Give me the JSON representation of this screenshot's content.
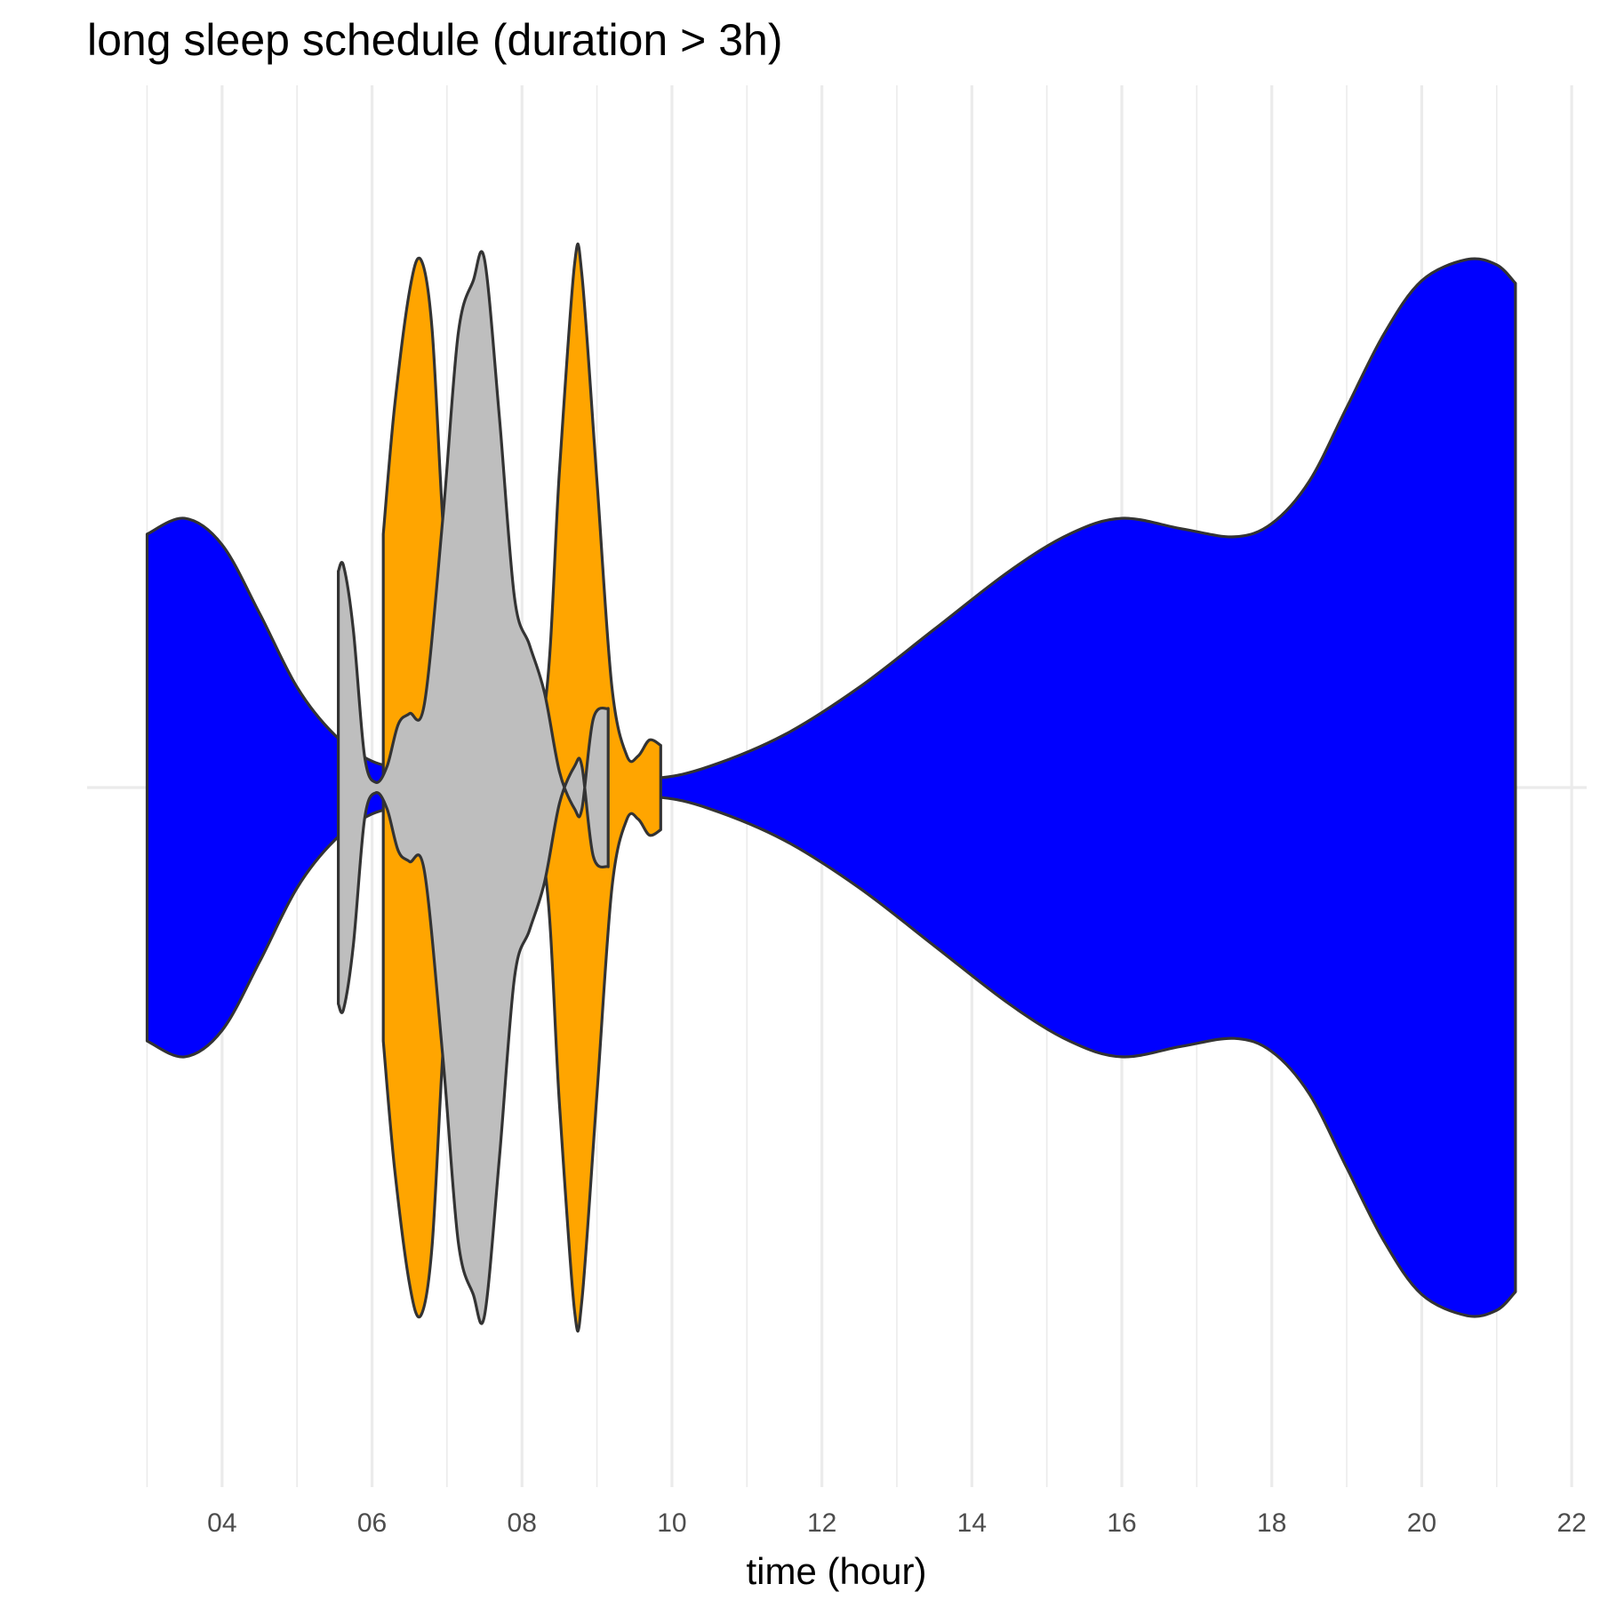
{
  "chart_data": {
    "type": "violin",
    "title": "long sleep schedule (duration > 3h)",
    "xlabel": "time (hour)",
    "ylabel": "",
    "xlim": [
      2.2,
      22.2
    ],
    "x_ticks": [
      "04",
      "06",
      "08",
      "10",
      "12",
      "14",
      "16",
      "18",
      "20",
      "22"
    ],
    "x_tick_values": [
      4,
      6,
      8,
      10,
      12,
      14,
      16,
      18,
      20,
      22
    ],
    "x_minor": [
      3,
      5,
      7,
      9,
      11,
      13,
      15,
      17,
      19,
      21
    ],
    "grid": true,
    "legend": "none",
    "series": [
      {
        "color": "#0000ff",
        "range": [
          3.0,
          21.25
        ],
        "density": [
          [
            3.0,
            0.48
          ],
          [
            3.5,
            0.51
          ],
          [
            4.0,
            0.46
          ],
          [
            4.5,
            0.33
          ],
          [
            5.0,
            0.19
          ],
          [
            5.5,
            0.1
          ],
          [
            6.0,
            0.05
          ],
          [
            6.5,
            0.035
          ],
          [
            7.0,
            0.03
          ],
          [
            8.0,
            0.025
          ],
          [
            9.0,
            0.022
          ],
          [
            9.8,
            0.018
          ],
          [
            10.5,
            0.04
          ],
          [
            11.5,
            0.1
          ],
          [
            12.5,
            0.19
          ],
          [
            13.5,
            0.3
          ],
          [
            14.5,
            0.41
          ],
          [
            15.3,
            0.48
          ],
          [
            16.0,
            0.51
          ],
          [
            16.8,
            0.49
          ],
          [
            17.5,
            0.475
          ],
          [
            18.0,
            0.5
          ],
          [
            18.5,
            0.58
          ],
          [
            19.0,
            0.72
          ],
          [
            19.5,
            0.86
          ],
          [
            20.0,
            0.96
          ],
          [
            20.6,
            1.0
          ],
          [
            21.0,
            0.99
          ],
          [
            21.25,
            0.955
          ]
        ]
      },
      {
        "color": "#ffa500",
        "range": [
          6.15,
          9.85
        ],
        "density": [
          [
            6.15,
            0.48
          ],
          [
            6.3,
            0.72
          ],
          [
            6.5,
            0.94
          ],
          [
            6.65,
            1.0
          ],
          [
            6.8,
            0.87
          ],
          [
            6.95,
            0.49
          ],
          [
            7.1,
            0.23
          ],
          [
            7.4,
            0.08
          ],
          [
            7.9,
            0.05
          ],
          [
            8.3,
            0.15
          ],
          [
            8.5,
            0.6
          ],
          [
            8.7,
            0.99
          ],
          [
            8.8,
            0.97
          ],
          [
            9.0,
            0.58
          ],
          [
            9.2,
            0.19
          ],
          [
            9.4,
            0.06
          ],
          [
            9.55,
            0.06
          ],
          [
            9.7,
            0.09
          ],
          [
            9.85,
            0.08
          ]
        ]
      },
      {
        "color": "#bebebe",
        "range": [
          5.55,
          9.15
        ],
        "density": [
          [
            5.55,
            0.41
          ],
          [
            5.62,
            0.42
          ],
          [
            5.75,
            0.3
          ],
          [
            5.9,
            0.06
          ],
          [
            6.05,
            0.01
          ],
          [
            6.2,
            0.04
          ],
          [
            6.35,
            0.12
          ],
          [
            6.5,
            0.14
          ],
          [
            6.7,
            0.16
          ],
          [
            6.95,
            0.52
          ],
          [
            7.15,
            0.86
          ],
          [
            7.35,
            0.96
          ],
          [
            7.5,
            1.0
          ],
          [
            7.7,
            0.7
          ],
          [
            7.9,
            0.36
          ],
          [
            8.1,
            0.27
          ],
          [
            8.3,
            0.18
          ],
          [
            8.5,
            0.03
          ],
          [
            8.7,
            -0.04
          ],
          [
            8.8,
            -0.04
          ],
          [
            8.95,
            0.13
          ],
          [
            9.15,
            0.15
          ]
        ]
      }
    ]
  }
}
